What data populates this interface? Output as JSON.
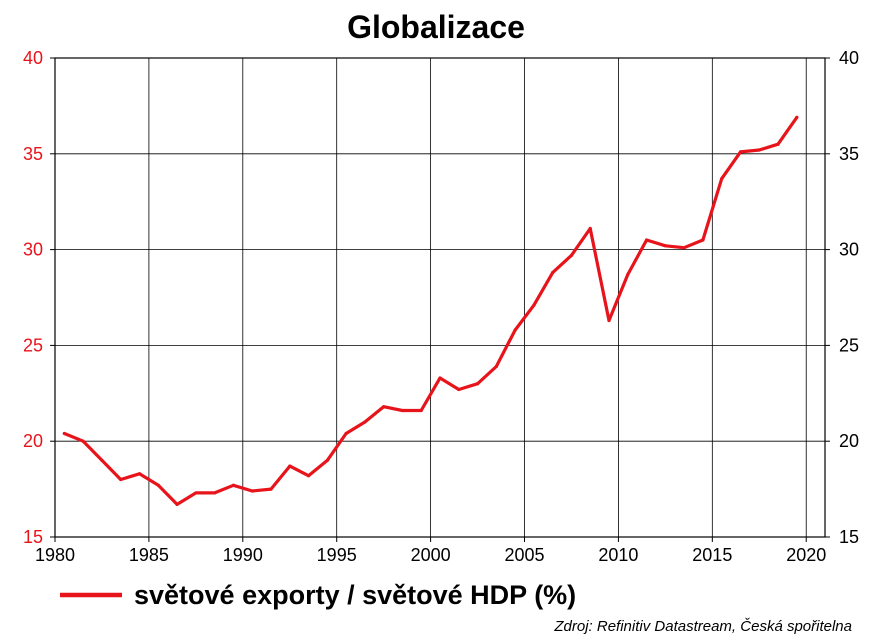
{
  "chart_data": {
    "type": "line",
    "title": "Globalizace",
    "xlabel": "",
    "ylabel": "",
    "xlim": [
      1980,
      2021
    ],
    "ylim": [
      15,
      40
    ],
    "x_ticks": [
      1980,
      1985,
      1990,
      1995,
      2000,
      2005,
      2010,
      2015,
      2020
    ],
    "y_ticks": [
      15,
      20,
      25,
      30,
      35,
      40
    ],
    "grid": true,
    "dual_y_axis": true,
    "legend_position": "bottom-left",
    "colors": {
      "series": "#e8141b",
      "left_axis_text": "#e8141b",
      "grid": "#000000"
    },
    "series": [
      {
        "name": "světové exporty / světové HDP (%)",
        "x": [
          1980.5,
          1981.5,
          1982.5,
          1983.5,
          1984.5,
          1985.5,
          1986.5,
          1987.5,
          1988.5,
          1989.5,
          1990.5,
          1991.5,
          1992.5,
          1993.5,
          1994.5,
          1995.5,
          1996.5,
          1997.5,
          1998.5,
          1999.5,
          2000.5,
          2001.5,
          2002.5,
          2003.5,
          2004.5,
          2005.5,
          2006.5,
          2007.5,
          2008.5,
          2009.5,
          2010.5,
          2011.5,
          2012.5,
          2013.5,
          2014.5,
          2015.5,
          2016.5,
          2017.5,
          2018.5,
          2019.5
        ],
        "values": [
          20.4,
          20.0,
          19.0,
          18.0,
          18.3,
          17.7,
          16.7,
          17.3,
          17.3,
          17.7,
          17.4,
          17.5,
          18.7,
          18.2,
          19.0,
          20.4,
          21.0,
          21.8,
          21.6,
          21.6,
          23.3,
          22.7,
          23.0,
          23.9,
          25.8,
          27.1,
          28.8,
          29.7,
          31.1,
          26.3,
          28.7,
          30.5,
          30.2,
          30.1,
          30.5,
          33.7,
          35.1,
          35.2,
          35.5,
          36.9
        ]
      }
    ],
    "source": "Zdroj: Refinitiv Datastream, Česká spořitelna"
  }
}
